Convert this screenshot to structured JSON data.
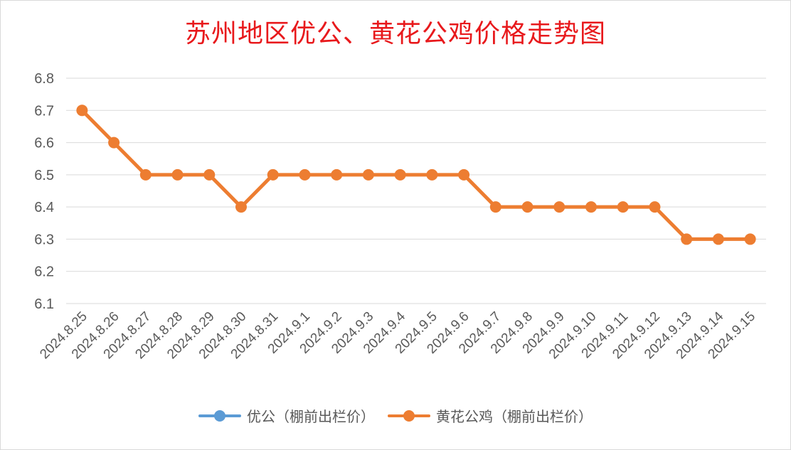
{
  "chart_data": {
    "type": "line",
    "title": "苏州地区优公、黄花公鸡价格走势图",
    "categories": [
      "2024.8.25",
      "2024.8.26",
      "2024.8.27",
      "2024.8.28",
      "2024.8.29",
      "2024.8.30",
      "2024.8.31",
      "2024.9.1",
      "2024.9.2",
      "2024.9.3",
      "2024.9.4",
      "2024.9.5",
      "2024.9.6",
      "2024.9.7",
      "2024.9.8",
      "2024.9.9",
      "2024.9.10",
      "2024.9.11",
      "2024.9.12",
      "2024.9.13",
      "2024.9.14",
      "2024.9.15"
    ],
    "series": [
      {
        "name": "优公（棚前出栏价）",
        "color": "#5b9bd5",
        "values": [
          null,
          null,
          null,
          null,
          null,
          null,
          null,
          null,
          null,
          null,
          null,
          null,
          null,
          null,
          null,
          null,
          null,
          null,
          null,
          null,
          null,
          null
        ]
      },
      {
        "name": "黄花公鸡（棚前出栏价）",
        "color": "#ed7d31",
        "values": [
          6.7,
          6.6,
          6.5,
          6.5,
          6.5,
          6.4,
          6.5,
          6.5,
          6.5,
          6.5,
          6.5,
          6.5,
          6.5,
          6.4,
          6.4,
          6.4,
          6.4,
          6.4,
          6.4,
          6.3,
          6.3,
          6.3
        ]
      }
    ],
    "ylim": [
      6.1,
      6.8
    ],
    "yticks": [
      "6.1",
      "6.2",
      "6.3",
      "6.4",
      "6.5",
      "6.6",
      "6.7",
      "6.8"
    ],
    "grid": true,
    "legend_position": "bottom",
    "xlabel": "",
    "ylabel": ""
  }
}
